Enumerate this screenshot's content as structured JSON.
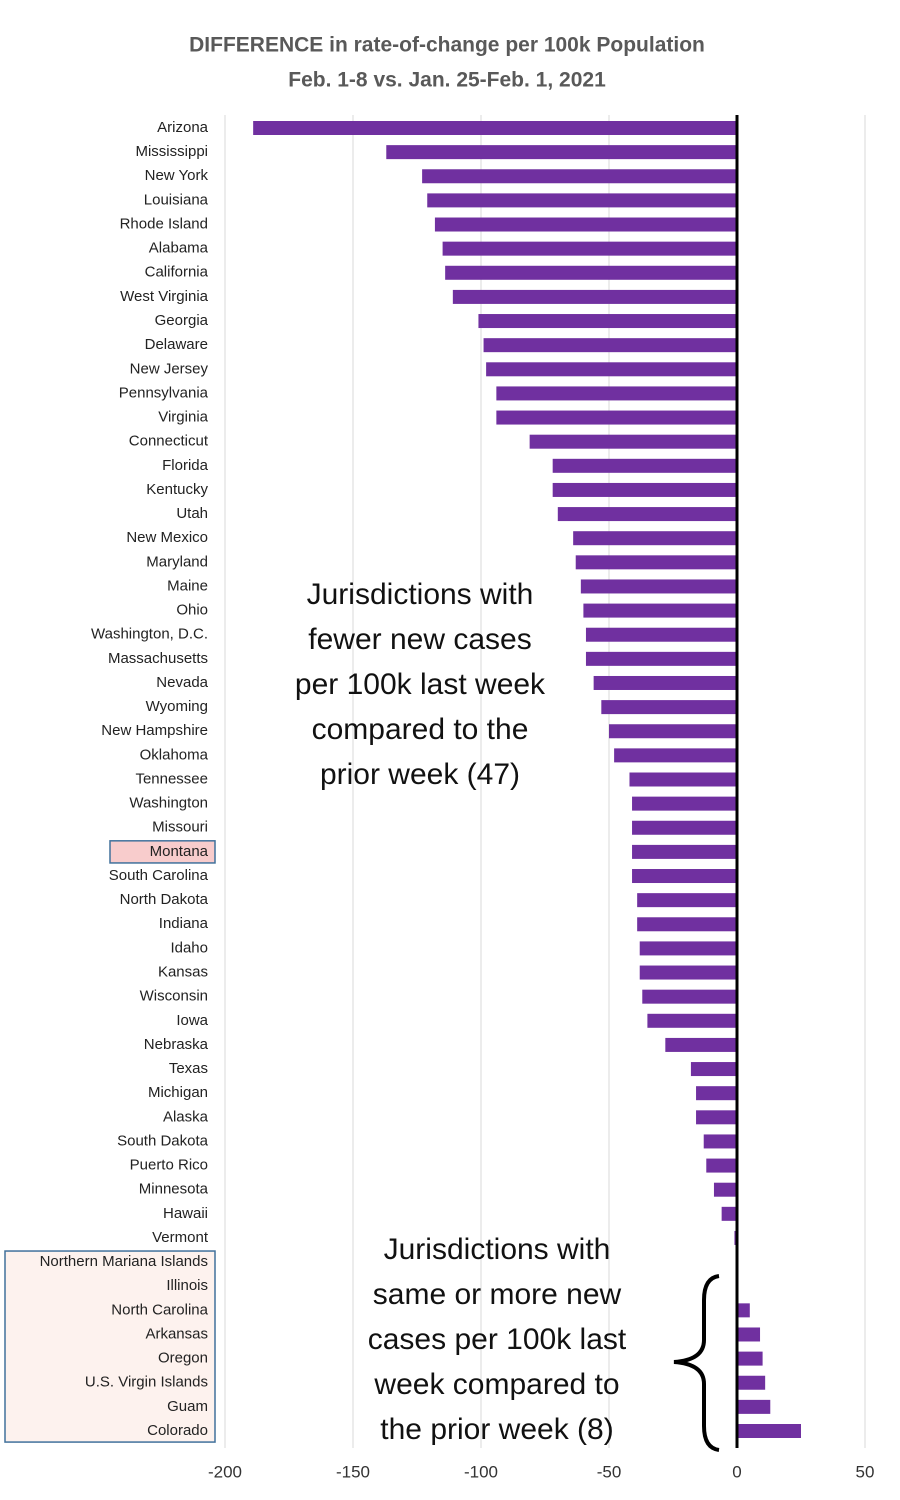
{
  "chart_data": {
    "type": "bar",
    "orientation": "horizontal",
    "title": "DIFFERENCE in rate-of-change per 100k Population",
    "subtitle": "Feb. 1-8 vs. Jan. 25-Feb. 1, 2021",
    "categories": [
      "Arizona",
      "Mississippi",
      "New York",
      "Louisiana",
      "Rhode Island",
      "Alabama",
      "California",
      "West Virginia",
      "Georgia",
      "Delaware",
      "New Jersey",
      "Pennsylvania",
      "Virginia",
      "Connecticut",
      "Florida",
      "Kentucky",
      "Utah",
      "New Mexico",
      "Maryland",
      "Maine",
      "Ohio",
      "Washington, D.C.",
      "Massachusetts",
      "Nevada",
      "Wyoming",
      "New Hampshire",
      "Oklahoma",
      "Tennessee",
      "Washington",
      "Missouri",
      "Montana",
      "South Carolina",
      "North Dakota",
      "Indiana",
      "Idaho",
      "Kansas",
      "Wisconsin",
      "Iowa",
      "Nebraska",
      "Texas",
      "Michigan",
      "Alaska",
      "South Dakota",
      "Puerto Rico",
      "Minnesota",
      "Hawaii",
      "Vermont",
      "Northern Mariana Islands",
      "Illinois",
      "North Carolina",
      "Arkansas",
      "Oregon",
      "U.S. Virgin Islands",
      "Guam",
      "Colorado"
    ],
    "values": [
      -189,
      -137,
      -123,
      -121,
      -118,
      -115,
      -114,
      -111,
      -101,
      -99,
      -98,
      -94,
      -94,
      -81,
      -72,
      -72,
      -70,
      -64,
      -63,
      -61,
      -60,
      -59,
      -59,
      -56,
      -53,
      -50,
      -48,
      -42,
      -41,
      -41,
      -41,
      -41,
      -39,
      -39,
      -38,
      -38,
      -37,
      -35,
      -28,
      -18,
      -16,
      -16,
      -13,
      -12,
      -9,
      -6,
      -1,
      0,
      0,
      5,
      9,
      10,
      11,
      13,
      25
    ],
    "color": "#7030a0",
    "xlim": [
      -200,
      50
    ],
    "xticks": [
      -200,
      -150,
      -100,
      -50,
      0,
      50
    ],
    "grid": true,
    "label_boxes": [
      {
        "from": 30,
        "to": 30,
        "fill": "#f8cccc"
      },
      {
        "from": 47,
        "to": 54,
        "fill": "#fdf2ee"
      }
    ],
    "annotations": [
      {
        "lines": [
          "Jurisdictions with",
          "fewer new cases",
          "per 100k last week",
          "compared to the",
          "prior week (47)"
        ]
      },
      {
        "lines": [
          "Jurisdictions with",
          "same or more new",
          "cases per 100k last",
          "week compared to",
          "the prior week (8)"
        ]
      }
    ]
  }
}
